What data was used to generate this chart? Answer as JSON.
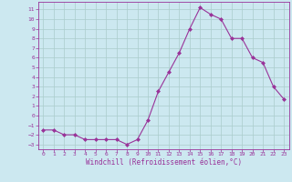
{
  "x": [
    0,
    1,
    2,
    3,
    4,
    5,
    6,
    7,
    8,
    9,
    10,
    11,
    12,
    13,
    14,
    15,
    16,
    17,
    18,
    19,
    20,
    21,
    22,
    23
  ],
  "y": [
    -1.5,
    -1.5,
    -2,
    -2,
    -2.5,
    -2.5,
    -2.5,
    -2.5,
    -3,
    -2.5,
    -0.5,
    2.5,
    4.5,
    6.5,
    9,
    11.2,
    10.5,
    10,
    8,
    8,
    6,
    5.5,
    3,
    1.7
  ],
  "line_color": "#993399",
  "marker": "D",
  "marker_size": 2,
  "bg_color": "#cce8f0",
  "grid_color": "#aacccc",
  "xlabel": "Windchill (Refroidissement éolien,°C)",
  "xlim": [
    -0.5,
    23.5
  ],
  "ylim": [
    -3.5,
    11.8
  ],
  "yticks": [
    -3,
    -2,
    -1,
    0,
    1,
    2,
    3,
    4,
    5,
    6,
    7,
    8,
    9,
    10,
    11
  ],
  "xticks": [
    0,
    1,
    2,
    3,
    4,
    5,
    6,
    7,
    8,
    9,
    10,
    11,
    12,
    13,
    14,
    15,
    16,
    17,
    18,
    19,
    20,
    21,
    22,
    23
  ],
  "tick_color": "#993399",
  "label_color": "#993399",
  "axis_color": "#993399"
}
